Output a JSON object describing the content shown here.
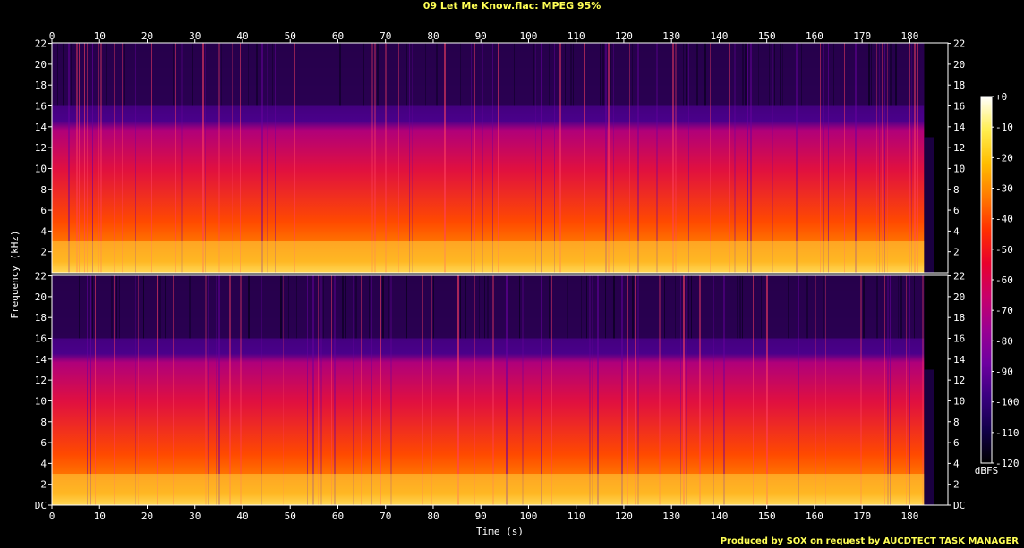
{
  "title": "09 Let Me Know.flac: MPEG 95%",
  "credit": "Produced by SOX on request by AUCDTECT TASK MANAGER",
  "colors": {
    "background": "#000000",
    "title_text": "#ffff55",
    "axis_text": "#ffffff",
    "frame": "#ffffff"
  },
  "chart_data": {
    "type": "heatmap",
    "title": "09 Let Me Know.flac: MPEG 95%",
    "xlabel": "Time (s)",
    "ylabel": "Frequency (kHz)",
    "xlim": [
      0,
      188
    ],
    "ylim": [
      0,
      22.05
    ],
    "x_ticks": [
      0,
      10,
      20,
      30,
      40,
      50,
      60,
      70,
      80,
      90,
      100,
      110,
      120,
      130,
      140,
      150,
      160,
      170,
      180
    ],
    "y_tick_labels": [
      "DC",
      "2",
      "4",
      "6",
      "8",
      "10",
      "12",
      "14",
      "16",
      "18",
      "20",
      "22"
    ],
    "channels": 2,
    "lowpass_cutoff_khz": 16,
    "audio_end_s": 183,
    "colorbar": {
      "label": "dBFS",
      "min": -120,
      "max": 0,
      "tick_labels": [
        "+0",
        "-10",
        "-20",
        "-30",
        "-40",
        "-50",
        "-60",
        "-70",
        "-80",
        "-90",
        "-100",
        "-110",
        "-120"
      ]
    },
    "colormap": [
      "#000000",
      "#12004a",
      "#3a0080",
      "#6e00a0",
      "#9a0092",
      "#c8006a",
      "#e8002c",
      "#ff3000",
      "#ff7a00",
      "#ffbe00",
      "#ffee50",
      "#ffffff"
    ]
  }
}
